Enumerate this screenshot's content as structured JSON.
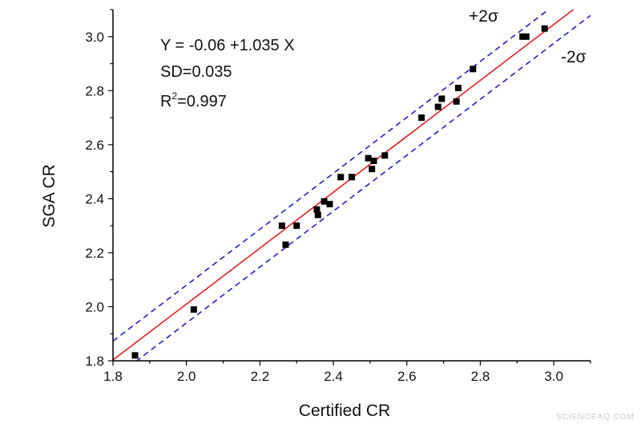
{
  "chart_data": {
    "type": "scatter",
    "xlabel": "Certified CR",
    "ylabel": "SGA CR",
    "xlim": [
      1.8,
      3.1
    ],
    "ylim": [
      1.8,
      3.1
    ],
    "xticks": [
      "1.8",
      "2.0",
      "2.2",
      "2.4",
      "2.6",
      "2.8",
      "3.0"
    ],
    "yticks": [
      "1.8",
      "2.0",
      "2.2",
      "2.4",
      "2.6",
      "2.8",
      "3.0"
    ],
    "grid": false,
    "annotations": {
      "equation": "Y = -0.06 +1.035 X",
      "sd": "SD=0.035",
      "r2_prefix": "R",
      "r2_exp": "2",
      "r2_value": "=0.997"
    },
    "band_labels": {
      "upper": "+2σ",
      "lower": "-2σ"
    },
    "fit": {
      "intercept": -0.06,
      "slope": 1.035,
      "color": "#e02020"
    },
    "band": {
      "offset": 0.07,
      "color": "#2020c8"
    },
    "marker_color": "#000000",
    "points": [
      {
        "x": 1.86,
        "y": 1.82
      },
      {
        "x": 2.02,
        "y": 1.99
      },
      {
        "x": 2.26,
        "y": 2.3
      },
      {
        "x": 2.27,
        "y": 2.23
      },
      {
        "x": 2.3,
        "y": 2.3
      },
      {
        "x": 2.355,
        "y": 2.36
      },
      {
        "x": 2.358,
        "y": 2.34
      },
      {
        "x": 2.375,
        "y": 2.39
      },
      {
        "x": 2.39,
        "y": 2.38
      },
      {
        "x": 2.42,
        "y": 2.48
      },
      {
        "x": 2.45,
        "y": 2.48
      },
      {
        "x": 2.495,
        "y": 2.55
      },
      {
        "x": 2.505,
        "y": 2.51
      },
      {
        "x": 2.51,
        "y": 2.54
      },
      {
        "x": 2.54,
        "y": 2.56
      },
      {
        "x": 2.64,
        "y": 2.7
      },
      {
        "x": 2.685,
        "y": 2.74
      },
      {
        "x": 2.695,
        "y": 2.77
      },
      {
        "x": 2.735,
        "y": 2.76
      },
      {
        "x": 2.74,
        "y": 2.81
      },
      {
        "x": 2.78,
        "y": 2.88
      },
      {
        "x": 2.915,
        "y": 3.0
      },
      {
        "x": 2.925,
        "y": 3.0
      },
      {
        "x": 2.975,
        "y": 3.03
      }
    ]
  },
  "watermark": "SCIENCEAQ.COM"
}
